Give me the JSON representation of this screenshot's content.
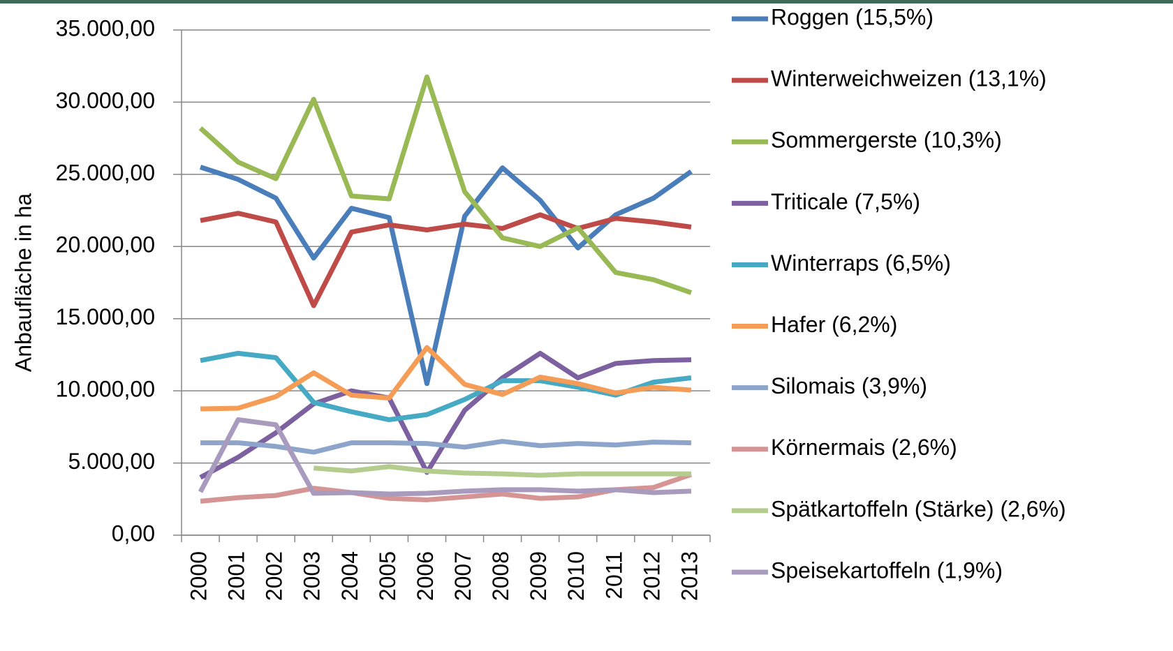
{
  "chart_data": {
    "type": "line",
    "y_label": "Anbaufläche in ha",
    "categories": [
      "2000",
      "2001",
      "2002",
      "2003",
      "2004",
      "2005",
      "2006",
      "2007",
      "2008",
      "2009",
      "2010",
      "2011",
      "2012",
      "2013"
    ],
    "ylim": [
      0,
      35000
    ],
    "yticks": [
      {
        "value": 0,
        "label": "0,00"
      },
      {
        "value": 5000,
        "label": "5.000,00"
      },
      {
        "value": 10000,
        "label": "10.000,00"
      },
      {
        "value": 15000,
        "label": "15.000,00"
      },
      {
        "value": 20000,
        "label": "20.000,00"
      },
      {
        "value": 25000,
        "label": "25.000,00"
      },
      {
        "value": 30000,
        "label": "30.000,00"
      },
      {
        "value": 35000,
        "label": "35.000,00"
      }
    ],
    "grid": true,
    "legend": "right",
    "series": [
      {
        "name": "Roggen (15,5%)",
        "color": "#4a7ebb",
        "values": [
          25500,
          24650,
          23350,
          19200,
          22650,
          22000,
          10500,
          22100,
          25450,
          23200,
          19900,
          22200,
          23350,
          25200
        ]
      },
      {
        "name": "Winterweichweizen (13,1%)",
        "color": "#be4b48",
        "values": [
          21800,
          22300,
          21700,
          15900,
          21000,
          21500,
          21150,
          21550,
          21250,
          22200,
          21250,
          21950,
          21700,
          21350
        ]
      },
      {
        "name": "Sommergerste (10,3%)",
        "color": "#98b954",
        "values": [
          28200,
          25850,
          24700,
          30200,
          23500,
          23300,
          31750,
          23800,
          20600,
          20000,
          21300,
          18200,
          17700,
          16800
        ]
      },
      {
        "name": "Triticale (7,5%)",
        "color": "#7d60a0",
        "values": [
          4000,
          5400,
          7100,
          9100,
          10000,
          9500,
          4350,
          8650,
          10900,
          12600,
          10900,
          11900,
          12100,
          12150
        ]
      },
      {
        "name": "Winterraps (6,5%)",
        "color": "#46aac5",
        "values": [
          12100,
          12600,
          12300,
          9200,
          8550,
          8000,
          8350,
          9400,
          10700,
          10700,
          10250,
          9700,
          10600,
          10900
        ]
      },
      {
        "name": "Hafer (6,2%)",
        "color": "#f59d56",
        "values": [
          8750,
          8800,
          9600,
          11250,
          9700,
          9500,
          13000,
          10450,
          9750,
          10950,
          10500,
          9850,
          10250,
          10050
        ]
      },
      {
        "name": "Silomais (3,9%)",
        "color": "#8ea5cb",
        "values": [
          6400,
          6400,
          6150,
          5750,
          6400,
          6400,
          6350,
          6100,
          6500,
          6200,
          6350,
          6250,
          6450,
          6400
        ]
      },
      {
        "name": "Körnermais (2,6%)",
        "color": "#d69595",
        "values": [
          2350,
          2600,
          2750,
          3250,
          2950,
          2550,
          2450,
          2650,
          2850,
          2550,
          2650,
          3150,
          3300,
          4200
        ]
      },
      {
        "name": "Spätkartoffeln (Stärke) (2,6%)",
        "color": "#b4cd8f",
        "values": [
          null,
          null,
          null,
          4650,
          4450,
          4750,
          4450,
          4300,
          4250,
          4150,
          4250,
          4250,
          4250,
          4250
        ]
      },
      {
        "name": "Speisekartoffeln (1,9%)",
        "color": "#a99bbd",
        "values": [
          3000,
          8000,
          7650,
          2900,
          2950,
          2850,
          2900,
          3050,
          3150,
          3150,
          3050,
          3150,
          2950,
          3050
        ]
      }
    ]
  }
}
